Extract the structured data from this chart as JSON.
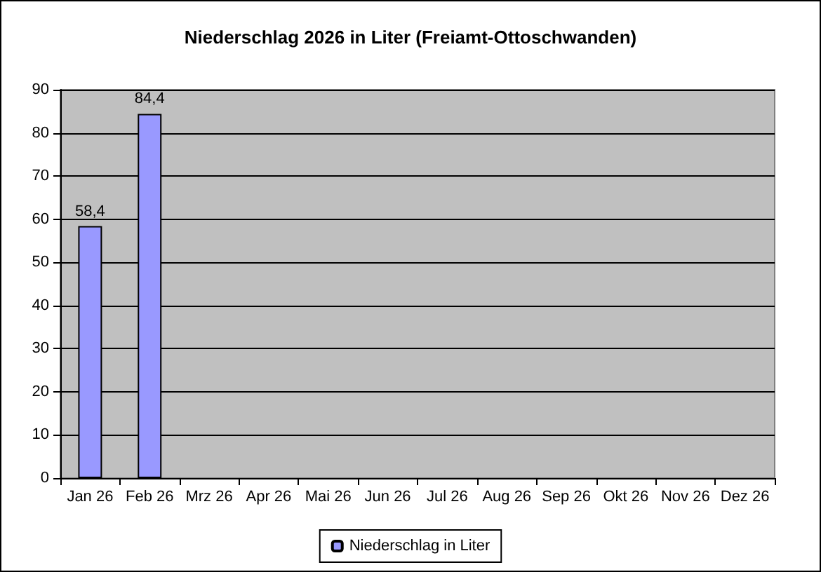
{
  "chart_data": {
    "type": "bar",
    "title": "Niederschlag 2026 in Liter (Freiamt-Ottoschwanden)",
    "categories": [
      "Jan 26",
      "Feb 26",
      "Mrz 26",
      "Apr 26",
      "Mai 26",
      "Jun 26",
      "Jul 26",
      "Aug 26",
      "Sep 26",
      "Okt 26",
      "Nov 26",
      "Dez 26"
    ],
    "series": [
      {
        "name": "Niederschlag in Liter",
        "color": "#9999ff",
        "values": [
          58.4,
          84.4,
          null,
          null,
          null,
          null,
          null,
          null,
          null,
          null,
          null,
          null
        ],
        "value_labels": [
          "58,4",
          "84,4",
          null,
          null,
          null,
          null,
          null,
          null,
          null,
          null,
          null,
          null
        ]
      }
    ],
    "ylim": [
      0,
      90
    ],
    "yticks": [
      0,
      10,
      20,
      30,
      40,
      50,
      60,
      70,
      80,
      90
    ],
    "grid": "y",
    "legend": "bottom"
  }
}
